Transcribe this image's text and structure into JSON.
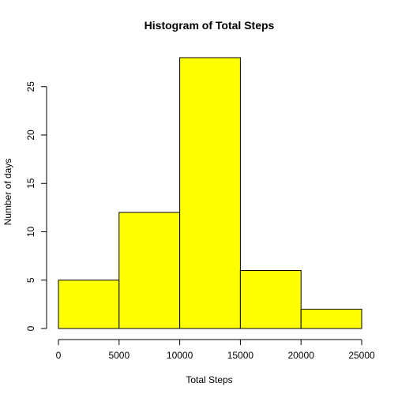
{
  "chart_data": {
    "type": "histogram",
    "title": "Histogram of Total Steps",
    "xlabel": "Total Steps",
    "ylabel": "Number of days",
    "bin_edges": [
      0,
      5000,
      10000,
      15000,
      20000,
      25000
    ],
    "values": [
      5,
      12,
      28,
      6,
      2
    ],
    "bar_color": "#ffff00",
    "xlim": [
      0,
      25000
    ],
    "ylim": [
      0,
      28
    ],
    "x_ticks": [
      0,
      5000,
      10000,
      15000,
      20000,
      25000
    ],
    "y_ticks": [
      0,
      5,
      10,
      15,
      20,
      25
    ],
    "grid": false
  }
}
